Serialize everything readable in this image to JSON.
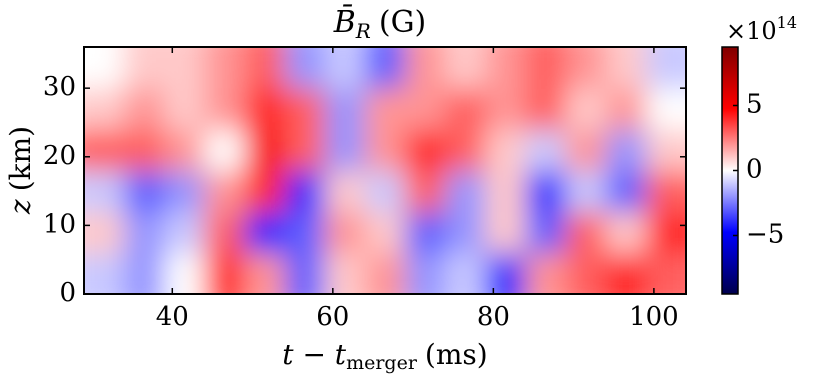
{
  "chart_data": {
    "type": "heatmap",
    "title": {
      "symbol": "B̄",
      "subscript": "R",
      "unit": "(G)"
    },
    "xlabel": {
      "main": "t − t",
      "subscript": "merger",
      "unit": "(ms)"
    },
    "ylabel": {
      "symbol": "z",
      "unit": "(km)"
    },
    "xlim": [
      29,
      104
    ],
    "xticks": [
      40,
      60,
      80,
      100
    ],
    "ylim": [
      0,
      36
    ],
    "yticks": [
      0,
      10,
      20,
      30
    ],
    "z": [
      [
        -1,
        -2,
        0,
        4,
        2,
        -3,
        1,
        2,
        -2,
        -1,
        -4,
        2,
        3,
        4,
        3
      ],
      [
        1,
        -2,
        -1,
        3,
        -4,
        -3,
        2,
        1,
        -3,
        -2,
        1,
        -3,
        3,
        1,
        4
      ],
      [
        -1,
        -3,
        -2,
        2,
        4,
        -4,
        1,
        -1,
        3,
        -2,
        1,
        -4,
        -1,
        -3,
        3
      ],
      [
        3,
        3,
        2,
        0,
        5,
        3,
        -2,
        2,
        4,
        3,
        1,
        -1,
        2,
        -2,
        1
      ],
      [
        1,
        2,
        1,
        2,
        4,
        3,
        -2,
        2,
        2,
        3,
        2,
        3,
        1,
        2,
        0
      ],
      [
        0,
        1,
        1,
        2,
        3,
        -2,
        -1,
        -3,
        2,
        1,
        2,
        3,
        2,
        1,
        -1
      ]
    ],
    "colormap": "seismic",
    "clim": [
      -9.5,
      9.5
    ],
    "cticks": [
      {
        "value": -5,
        "label": "−5"
      },
      0,
      5
    ],
    "cmultiplier": {
      "base": "×10",
      "exponent": "14"
    }
  }
}
